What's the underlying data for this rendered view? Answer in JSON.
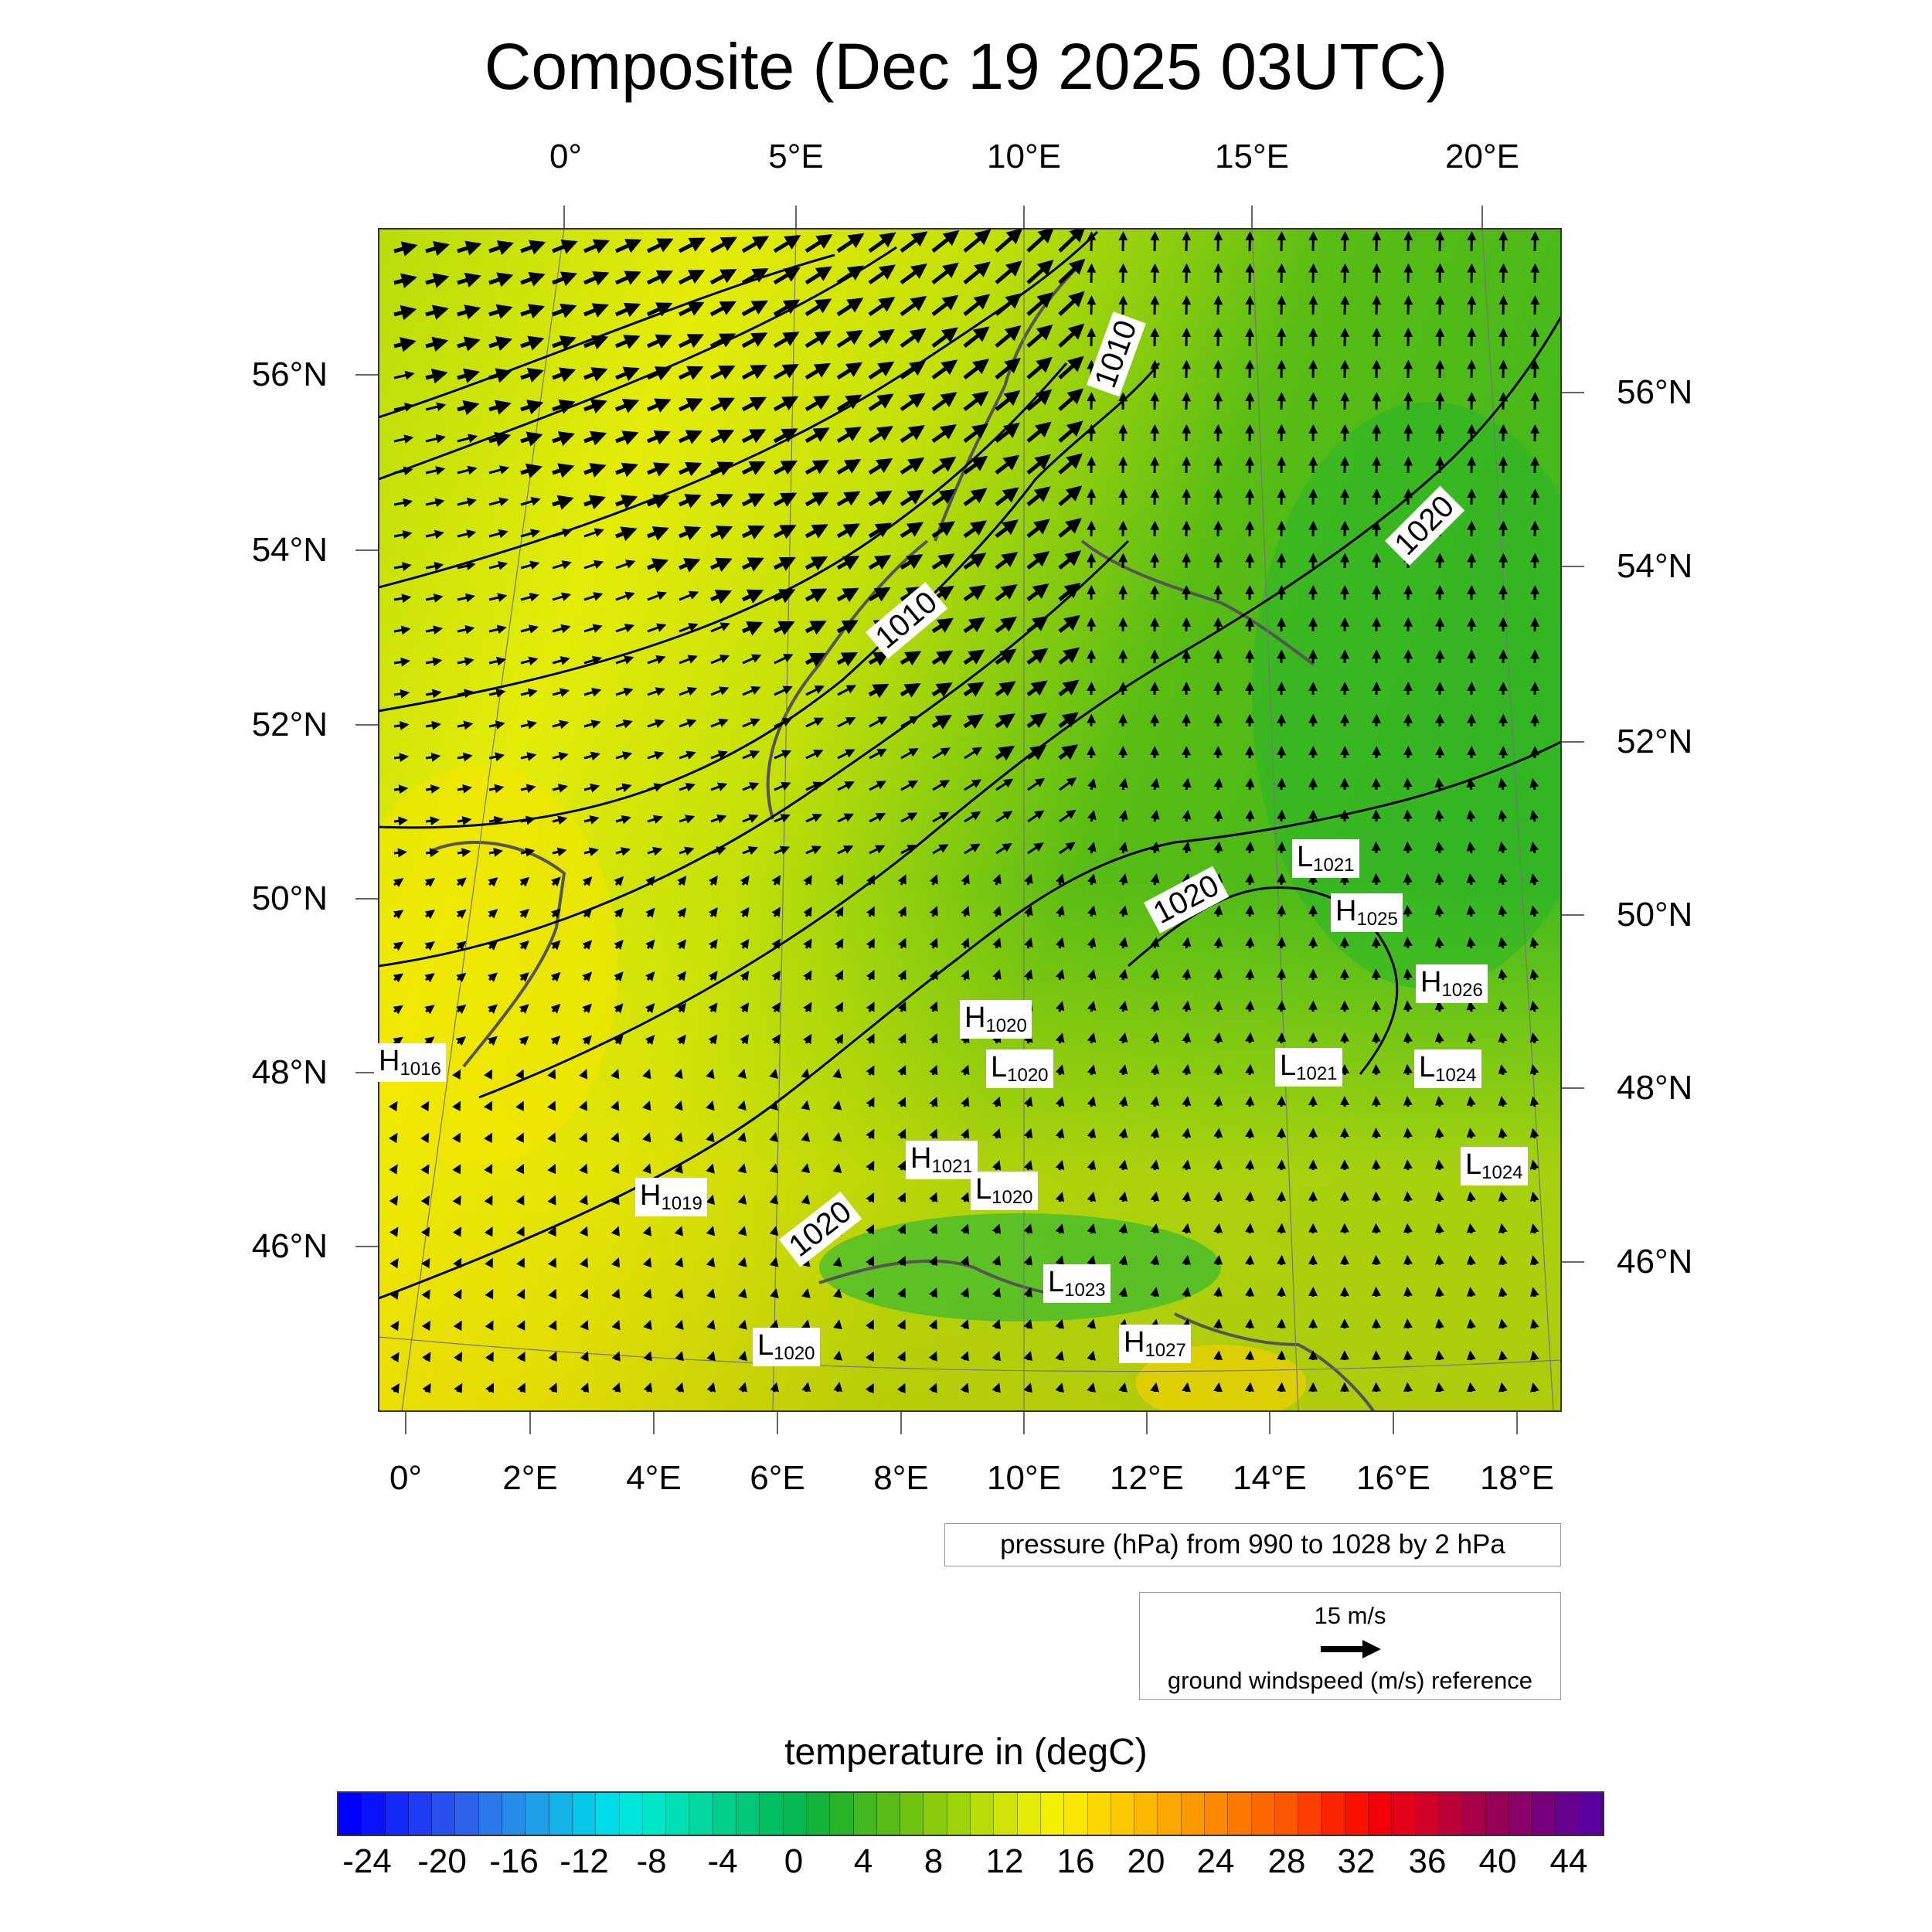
{
  "title": "Composite (Dec 19 2025 03UTC)",
  "map": {
    "top_lon_ticks": [
      "0°",
      "5°E",
      "10°E",
      "15°E",
      "20°E"
    ],
    "bottom_lon_ticks": [
      "0°",
      "2°E",
      "4°E",
      "6°E",
      "8°E",
      "10°E",
      "12°E",
      "14°E",
      "16°E",
      "18°E"
    ],
    "left_lat_ticks": [
      "56°N",
      "54°N",
      "52°N",
      "50°N",
      "48°N",
      "46°N"
    ],
    "right_lat_ticks": [
      "56°N",
      "54°N",
      "52°N",
      "50°N",
      "48°N",
      "46°N"
    ],
    "pressure_centers": [
      {
        "type": "L",
        "value": "1021"
      },
      {
        "type": "H",
        "value": "1025"
      },
      {
        "type": "H",
        "value": "1026"
      },
      {
        "type": "H",
        "value": "1020"
      },
      {
        "type": "L",
        "value": "1020"
      },
      {
        "type": "L",
        "value": "1021"
      },
      {
        "type": "L",
        "value": "1024"
      },
      {
        "type": "H",
        "value": "1016"
      },
      {
        "type": "H",
        "value": "1021"
      },
      {
        "type": "L",
        "value": "1020"
      },
      {
        "type": "L",
        "value": "1024"
      },
      {
        "type": "H",
        "value": "1019"
      },
      {
        "type": "L",
        "value": "1023"
      },
      {
        "type": "L",
        "value": "1020"
      },
      {
        "type": "H",
        "value": "1027"
      }
    ],
    "contour_labels": [
      "1010",
      "1020",
      "1010",
      "1020",
      "1020"
    ]
  },
  "contour_info": "pressure (hPa) from 990 to 1028 by 2 hPa",
  "vector_reference": {
    "speed": "15 m/s",
    "caption": "ground windspeed (m/s) reference"
  },
  "colorbar": {
    "title": "temperature in (degC)",
    "labels": [
      "-24",
      "-20",
      "-16",
      "-12",
      "-8",
      "-4",
      "0",
      "4",
      "8",
      "12",
      "16",
      "20",
      "24",
      "28",
      "32",
      "36",
      "40",
      "44"
    ],
    "colors": [
      "#0000ff",
      "#0a14fb",
      "#1428f7",
      "#1e3cf3",
      "#2850ef",
      "#2d64ec",
      "#2b78ea",
      "#258ce8",
      "#1ea0e8",
      "#14b4e8",
      "#08c8ea",
      "#00dcea",
      "#00e6dc",
      "#00e6c8",
      "#00e0b4",
      "#00d8a0",
      "#00d08c",
      "#00c878",
      "#00c064",
      "#08b850",
      "#14b43c",
      "#28b428",
      "#40b81e",
      "#58bc14",
      "#70c410",
      "#88cc0c",
      "#a0d40a",
      "#b8dc08",
      "#d0e408",
      "#e4ec08",
      "#f4f000",
      "#fae600",
      "#fcd800",
      "#fcc800",
      "#fcb800",
      "#fca800",
      "#fc9800",
      "#fc8800",
      "#fc7800",
      "#fc6800",
      "#fc5800",
      "#fc4000",
      "#fc2400",
      "#fc1000",
      "#f40008",
      "#e40018",
      "#d00028",
      "#bc0038",
      "#a80048",
      "#980058",
      "#880068",
      "#78007c",
      "#680090",
      "#5a00a0"
    ]
  }
}
